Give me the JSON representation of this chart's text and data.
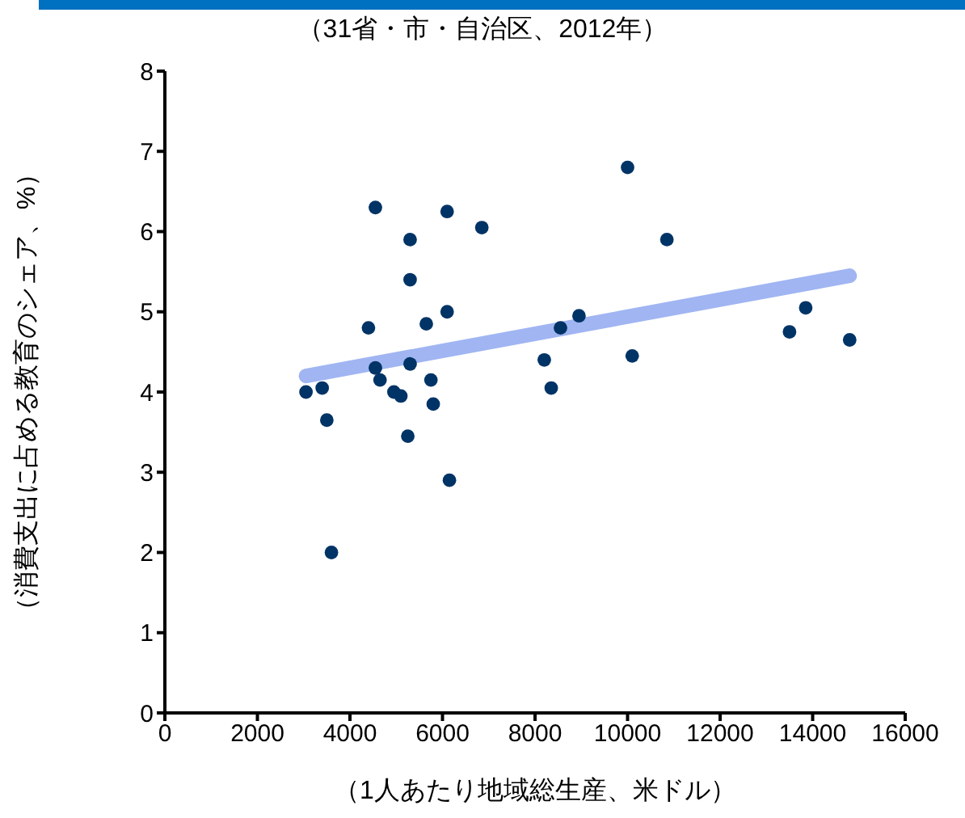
{
  "chart_data": {
    "type": "scatter",
    "title": "（31省・市・自治区、2012年）",
    "xlabel": "（1人あたり地域総生産、米ドル）",
    "ylabel": "（消費支出に占める教育のシェア、%）",
    "xlim": [
      0,
      16000
    ],
    "xticks": [
      0,
      2000,
      4000,
      6000,
      8000,
      10000,
      12000,
      14000,
      16000
    ],
    "ylim": [
      0,
      8
    ],
    "yticks": [
      0,
      1,
      2,
      3,
      4,
      5,
      6,
      7,
      8
    ],
    "grid": false,
    "marker": "circle",
    "series": [
      {
        "color": "#003366",
        "x": [
          3050,
          3400,
          3500,
          3600,
          4550,
          4400,
          4550,
          4650,
          4950,
          5100,
          5250,
          5300,
          5300,
          5300,
          5650,
          5750,
          5800,
          6100,
          6100,
          6150,
          6850,
          8200,
          8350,
          8550,
          8950,
          10000,
          10100,
          10850,
          13500,
          13850,
          14800
        ],
        "values": [
          4.0,
          4.05,
          3.65,
          2.0,
          6.3,
          4.8,
          4.3,
          4.15,
          4.0,
          3.95,
          3.45,
          5.9,
          5.4,
          4.35,
          4.85,
          4.15,
          3.85,
          6.25,
          5.0,
          2.9,
          6.05,
          4.4,
          4.05,
          4.8,
          4.95,
          6.8,
          4.45,
          5.9,
          4.75,
          5.05,
          4.65
        ]
      },
      {
        "type": "line",
        "color": "#8fa8f0",
        "line_style": "solid",
        "marker": "none",
        "x": [
          3050,
          14800
        ],
        "values": [
          4.2,
          5.45
        ]
      }
    ]
  }
}
